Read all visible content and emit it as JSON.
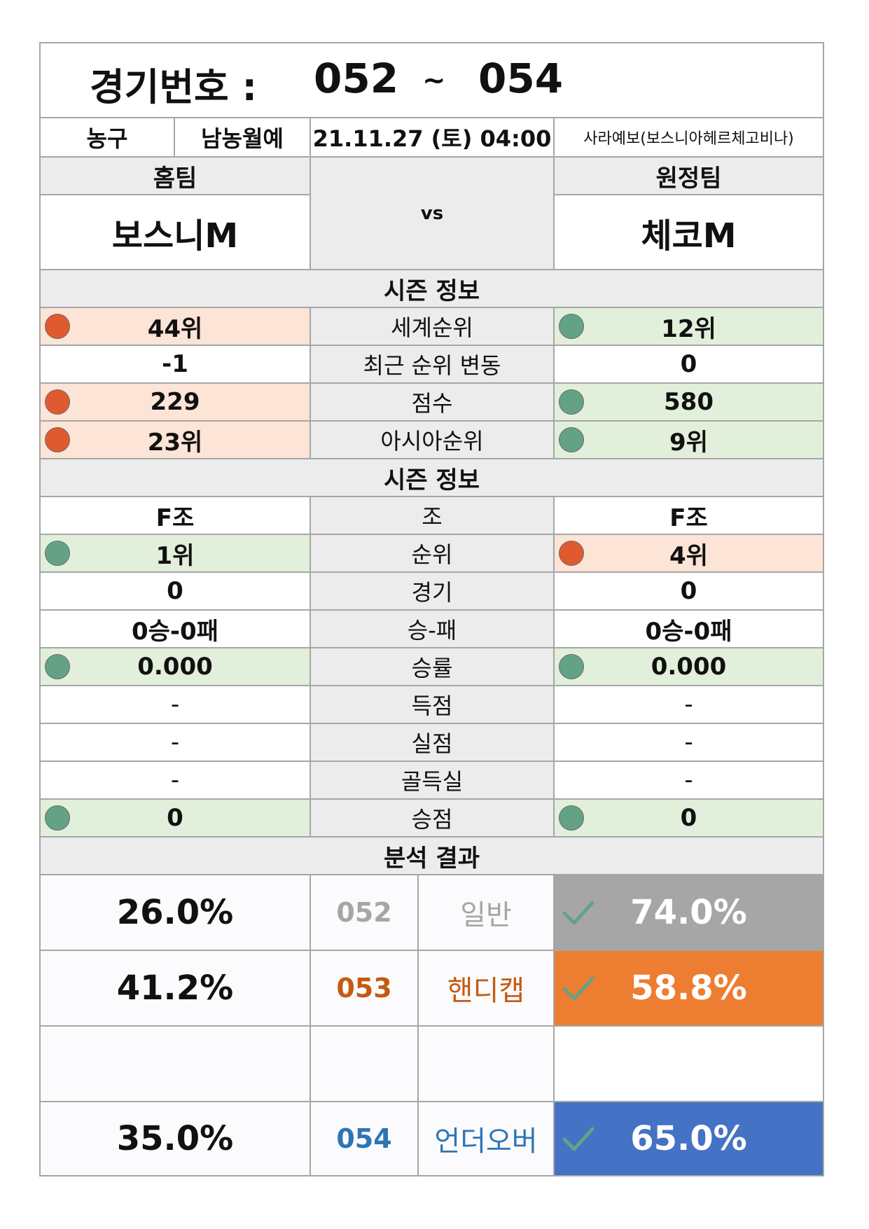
{
  "header": {
    "label": "경기번호 :",
    "from": "052",
    "sep": "~",
    "to": "054"
  },
  "info": {
    "sport": "농구",
    "league": "남농월예",
    "datetime": "21.11.27 (토) 04:00",
    "venue": "사라예보(보스니아헤르체고비나)"
  },
  "teams": {
    "home_label": "홈팀",
    "away_label": "원정팀",
    "home": "보스니M",
    "away": "체코M",
    "vs": "vs"
  },
  "season1": {
    "title": "시즌 정보",
    "rows": [
      {
        "label": "세계순위",
        "home": "44위",
        "away": "12위"
      },
      {
        "label": "최근 순위 변동",
        "home": "-1",
        "away": "0"
      },
      {
        "label": "점수",
        "home": "229",
        "away": "580"
      },
      {
        "label": "아시아순위",
        "home": "23위",
        "away": "9위"
      }
    ]
  },
  "season2": {
    "title": "시즌 정보",
    "rows": [
      {
        "label": "조",
        "home": "F조",
        "away": "F조"
      },
      {
        "label": "순위",
        "home": "1위",
        "away": "4위"
      },
      {
        "label": "경기",
        "home": "0",
        "away": "0"
      },
      {
        "label": "승-패",
        "home": "0승-0패",
        "away": "0승-0패"
      },
      {
        "label": "승률",
        "home": "0.000",
        "away": "0.000"
      },
      {
        "label": "득점",
        "home": "-",
        "away": "-"
      },
      {
        "label": "실점",
        "home": "-",
        "away": "-"
      },
      {
        "label": "골득실",
        "home": "-",
        "away": "-"
      },
      {
        "label": "승점",
        "home": "0",
        "away": "0"
      }
    ]
  },
  "analysis": {
    "title": "분석 결과",
    "rows": [
      {
        "left": "26.0%",
        "code": "052",
        "type": "일반",
        "right": "74.0%"
      },
      {
        "left": "41.2%",
        "code": "053",
        "type": "핸디캡",
        "right": "58.8%"
      },
      {
        "left": "",
        "code": "",
        "type": "",
        "right": ""
      },
      {
        "left": "35.0%",
        "code": "054",
        "type": "언더오버",
        "right": "65.0%"
      }
    ]
  },
  "colors": {
    "red_fill": "#fce4d6",
    "green_fill": "#e2efda",
    "red_dot": "#e05a2f",
    "green_dot": "#64a286",
    "general": "#a6a6a6",
    "handicap": "#ed7d31",
    "underover": "#4472c4",
    "check_icon": "#64a286"
  }
}
